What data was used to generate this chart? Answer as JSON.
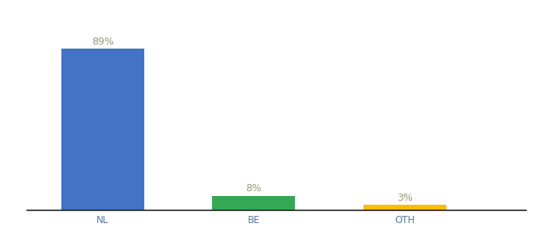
{
  "categories": [
    "NL",
    "BE",
    "OTH"
  ],
  "values": [
    89,
    8,
    3
  ],
  "bar_colors": [
    "#4472c4",
    "#34a853",
    "#fbbc04"
  ],
  "labels": [
    "89%",
    "8%",
    "3%"
  ],
  "background_color": "#ffffff",
  "label_color": "#999977",
  "label_fontsize": 9,
  "tick_fontsize": 8.5,
  "tick_color": "#5577aa",
  "ylim": [
    0,
    100
  ],
  "bar_width": 0.55
}
